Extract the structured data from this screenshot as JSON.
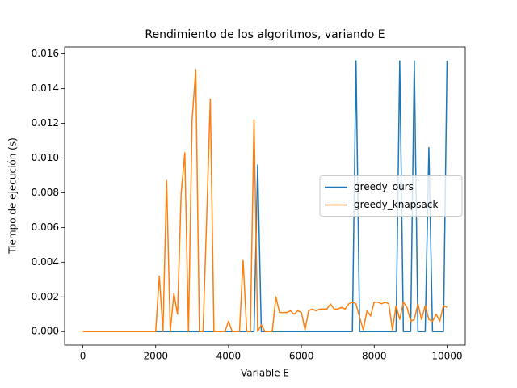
{
  "chart_data": {
    "type": "line",
    "title": "Rendimiento de los algoritmos, variando E",
    "xlabel": "Variable E",
    "ylabel": "Tiempo de ejecución (s)",
    "x": [
      0,
      100,
      200,
      300,
      400,
      500,
      600,
      700,
      800,
      900,
      1000,
      1100,
      1200,
      1300,
      1400,
      1500,
      1600,
      1700,
      1800,
      1900,
      2000,
      2100,
      2200,
      2300,
      2400,
      2500,
      2600,
      2700,
      2800,
      2900,
      3000,
      3100,
      3200,
      3300,
      3400,
      3500,
      3600,
      3700,
      3800,
      3900,
      4000,
      4100,
      4200,
      4300,
      4400,
      4500,
      4600,
      4700,
      4800,
      4900,
      5000,
      5100,
      5200,
      5300,
      5400,
      5500,
      5600,
      5700,
      5800,
      5900,
      6000,
      6100,
      6200,
      6300,
      6400,
      6500,
      6600,
      6700,
      6800,
      6900,
      7000,
      7100,
      7200,
      7300,
      7400,
      7500,
      7600,
      7700,
      7800,
      7900,
      8000,
      8100,
      8200,
      8300,
      8400,
      8500,
      8600,
      8700,
      8800,
      8900,
      9000,
      9100,
      9200,
      9300,
      9400,
      9500,
      9600,
      9700,
      9800,
      9900,
      10000
    ],
    "series": [
      {
        "name": "greedy_ours",
        "color": "#1f77b4",
        "values": [
          0,
          0,
          0,
          0,
          0,
          0,
          0,
          0,
          0,
          0,
          0,
          0,
          0,
          0,
          0,
          0,
          0,
          0,
          0,
          0,
          0,
          0,
          0,
          0,
          0,
          0,
          0,
          0,
          0,
          0,
          0,
          0,
          0,
          0,
          0,
          0,
          0,
          0,
          0,
          0,
          0,
          0,
          0,
          0,
          0,
          0,
          0,
          0,
          0.0096,
          0,
          0,
          0,
          0,
          0,
          0,
          0,
          0,
          0,
          0,
          0,
          0,
          0,
          0,
          0,
          0,
          0,
          0,
          0,
          0,
          0,
          0,
          0,
          0,
          0,
          0,
          0.0156,
          0,
          0,
          0,
          0,
          0,
          0,
          0,
          0,
          0,
          0,
          0,
          0.0156,
          0,
          0,
          0,
          0.0156,
          0,
          0,
          0,
          0.0106,
          0,
          0,
          0,
          0,
          0.0156
        ]
      },
      {
        "name": "greedy_knapsack",
        "color": "#ff7f0e",
        "values": [
          0,
          0,
          0,
          0,
          0,
          0,
          0,
          0,
          0,
          0,
          0,
          0,
          0,
          0,
          0,
          0,
          0,
          0,
          0,
          0,
          0,
          0.0032,
          0,
          0.0087,
          0,
          0.0022,
          0.001,
          0.008,
          0.0103,
          0,
          0.0122,
          0.0151,
          0,
          0,
          0.0065,
          0.0134,
          0,
          0,
          0,
          0,
          0.0006,
          0,
          0,
          0,
          0.0041,
          0,
          0,
          0.0122,
          0,
          0.0004,
          0,
          0,
          0,
          0.002,
          0.0011,
          0.0011,
          0.0011,
          0.0012,
          0.001,
          0.0012,
          0.0011,
          0.0001,
          0.0012,
          0.0013,
          0.0012,
          0.0013,
          0.0013,
          0.0013,
          0.0016,
          0.0013,
          0.0013,
          0.0014,
          0.0013,
          0.0016,
          0.0017,
          0.0016,
          0.0008,
          0.0001,
          0.0012,
          0.0009,
          0.0017,
          0.0017,
          0.0016,
          0.0017,
          0.0016,
          0.0001,
          0.0015,
          0.0007,
          0.0017,
          0.0014,
          0.0006,
          0.0007,
          0.0016,
          0.0007,
          0.0015,
          0.0007,
          0.0006,
          0.001,
          0.0006,
          0.0015,
          0.0014
        ]
      }
    ],
    "xlim": [
      -500,
      10500
    ],
    "ylim": [
      -0.00078,
      0.0164
    ],
    "xticks": [
      0,
      2000,
      4000,
      6000,
      8000,
      10000
    ],
    "yticks": [
      {
        "value": 0,
        "label": "0.000"
      },
      {
        "value": 0.002,
        "label": "0.002"
      },
      {
        "value": 0.004,
        "label": "0.004"
      },
      {
        "value": 0.006,
        "label": "0.006"
      },
      {
        "value": 0.008,
        "label": "0.008"
      },
      {
        "value": 0.01,
        "label": "0.010"
      },
      {
        "value": 0.012,
        "label": "0.012"
      },
      {
        "value": 0.014,
        "label": "0.014"
      },
      {
        "value": 0.016,
        "label": "0.016"
      }
    ],
    "grid": false,
    "legend": "center right"
  }
}
